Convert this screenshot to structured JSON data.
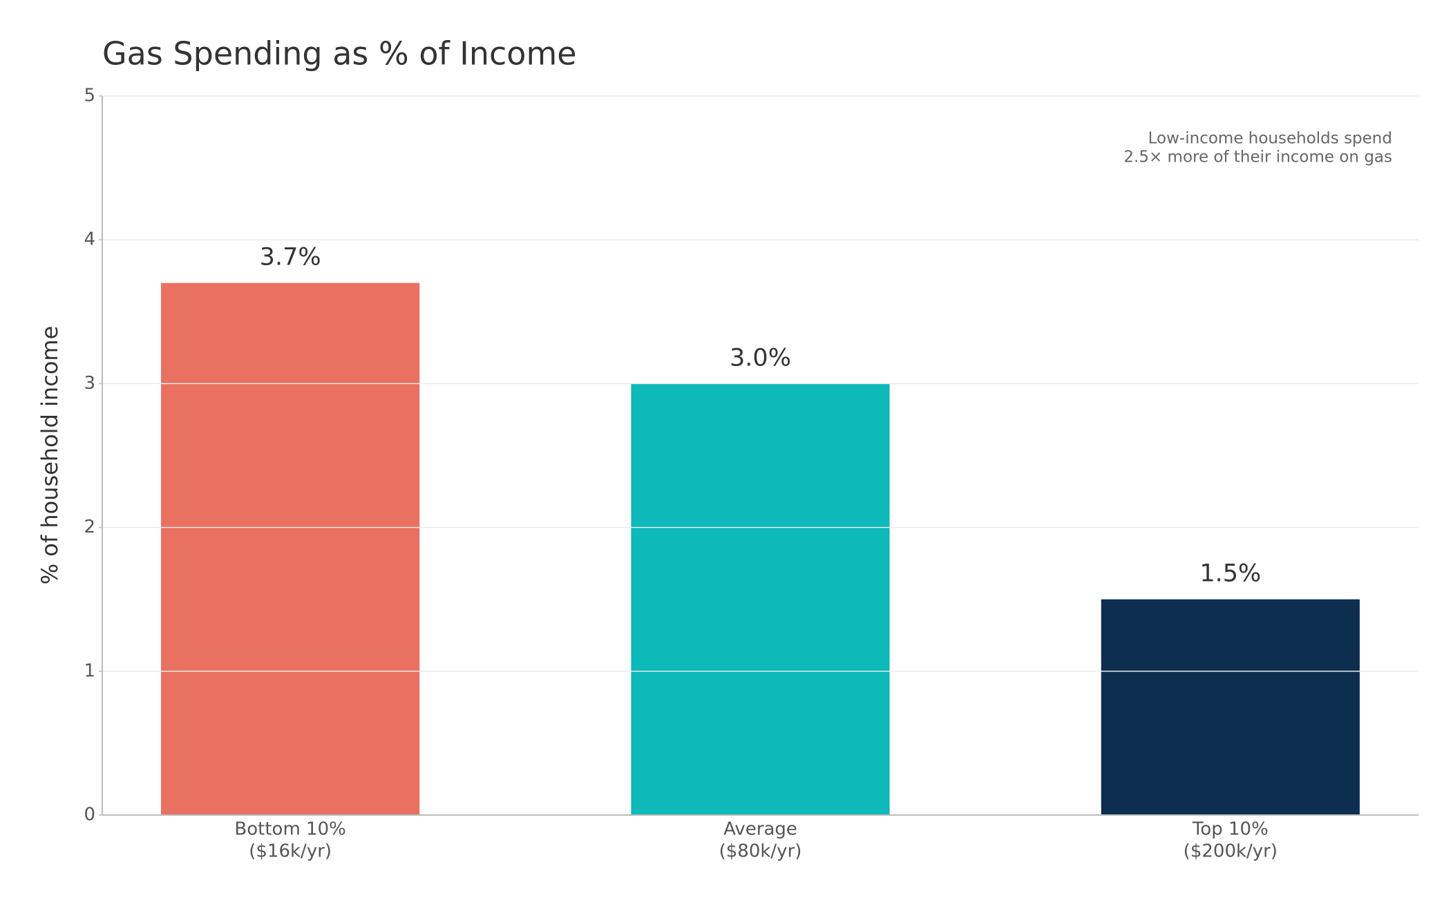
{
  "chart_data": {
    "type": "bar",
    "title": "Gas Spending as % of Income",
    "ylabel": "% of household income",
    "categories": [
      "Bottom 10%",
      "Average",
      "Top 10%"
    ],
    "sublabels": [
      "($16k/yr)",
      "($80k/yr)",
      "($200k/yr)"
    ],
    "values": [
      3.7,
      3.0,
      1.5
    ],
    "value_labels": [
      "3.7%",
      "3.0%",
      "1.5%"
    ],
    "colors": [
      "#e87161",
      "#0db9b9",
      "#0d2e4e"
    ],
    "annotation": [
      "Low-income households spend",
      "2.5× more of their income on gas"
    ],
    "ylim": [
      0,
      5
    ],
    "yticks": [
      0,
      1,
      2,
      3,
      4,
      5
    ],
    "grid": true
  }
}
